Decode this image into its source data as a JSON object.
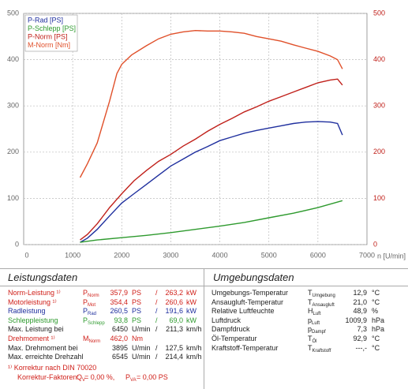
{
  "chart_data": {
    "type": "line",
    "xlabel": "n [U/min]",
    "xlim": [
      0,
      7000
    ],
    "xticks": [
      0,
      1000,
      2000,
      3000,
      4000,
      5000,
      6000,
      7000
    ],
    "ylim": [
      0,
      500
    ],
    "yticks": [
      0,
      100,
      200,
      300,
      400,
      500
    ],
    "y2lim": [
      0,
      500
    ],
    "y2ticks": [
      0,
      100,
      200,
      300,
      400,
      500
    ],
    "grid": true,
    "legend": "top-left",
    "series": [
      {
        "name": "P-Rad [PS]",
        "color": "#1f2f9e",
        "x": [
          1150,
          1300,
          1500,
          1750,
          2000,
          2250,
          2500,
          2750,
          3000,
          3250,
          3500,
          3750,
          4000,
          4250,
          4500,
          4750,
          5000,
          5250,
          5500,
          5750,
          6000,
          6250,
          6400,
          6500
        ],
        "values": [
          5,
          14,
          33,
          62,
          90,
          110,
          130,
          150,
          170,
          185,
          200,
          212,
          225,
          233,
          241,
          247,
          252,
          257,
          262,
          265,
          266,
          265,
          262,
          237
        ]
      },
      {
        "name": "P-Schlepp [PS]",
        "color": "#2e9a2e",
        "x": [
          1150,
          1500,
          2000,
          2500,
          3000,
          3500,
          4000,
          4500,
          5000,
          5500,
          6000,
          6500
        ],
        "values": [
          5,
          10,
          15,
          20,
          26,
          33,
          40,
          48,
          58,
          68,
          80,
          95
        ]
      },
      {
        "name": "P-Norm [PS]",
        "color": "#c0201a",
        "x": [
          1150,
          1300,
          1500,
          1750,
          2000,
          2250,
          2500,
          2750,
          3000,
          3250,
          3500,
          3750,
          4000,
          4250,
          4500,
          4750,
          5000,
          5250,
          5500,
          5750,
          6000,
          6250,
          6400,
          6500
        ],
        "values": [
          10,
          22,
          45,
          80,
          110,
          138,
          160,
          180,
          195,
          213,
          228,
          245,
          260,
          273,
          287,
          298,
          310,
          320,
          330,
          340,
          350,
          356,
          358,
          345
        ]
      },
      {
        "name": "M-Norm [Nm]",
        "color": "#e0502a",
        "axis": "y2",
        "x": [
          1150,
          1300,
          1500,
          1750,
          1900,
          2000,
          2200,
          2500,
          2750,
          3000,
          3250,
          3500,
          3750,
          3895,
          4000,
          4250,
          4500,
          4750,
          5000,
          5250,
          5500,
          5750,
          6000,
          6250,
          6400,
          6500
        ],
        "values": [
          145,
          175,
          220,
          310,
          370,
          390,
          410,
          430,
          445,
          455,
          460,
          463,
          462,
          462,
          462,
          460,
          457,
          450,
          445,
          440,
          432,
          425,
          418,
          408,
          400,
          380
        ]
      }
    ]
  },
  "left": {
    "title": "Leistungsdaten",
    "power_rows": [
      {
        "label": "Norm-Leistung ¹⁾",
        "color": "#d0201a",
        "symbol": {
          "main": "P",
          "sub": "Norm"
        },
        "v1": "357,9",
        "u1": "PS",
        "sep": "/",
        "v2": "263,2",
        "u2": "kW"
      },
      {
        "label": "Motorleistung ¹⁾",
        "color": "#d0201a",
        "symbol": {
          "main": "P",
          "sub": "Mot"
        },
        "v1": "354,4",
        "u1": "PS",
        "sep": "/",
        "v2": "260,6",
        "u2": "kW"
      },
      {
        "label": "Radleistung",
        "color": "#1f2f9e",
        "symbol": {
          "main": "P",
          "sub": "Rad"
        },
        "v1": "260,5",
        "u1": "PS",
        "sep": "/",
        "v2": "191,6",
        "u2": "kW"
      },
      {
        "label": "Schleppleistung",
        "color": "#2e9a2e",
        "symbol": {
          "main": "P",
          "sub": "Schlepp"
        },
        "v1": "93,8",
        "u1": "PS",
        "sep": "/",
        "v2": "69,0",
        "u2": "kW"
      },
      {
        "label": "Max. Leistung bei",
        "color": "#222222",
        "v1": "6450",
        "u1": "U/min",
        "sep": "/",
        "v2": "211,3",
        "u2": "km/h"
      }
    ],
    "torque_rows": [
      {
        "label": "Drehmoment ¹⁾",
        "color": "#d0201a",
        "symbol": {
          "main": "M",
          "sub": "Norm"
        },
        "v1": "462,0",
        "u1": "Nm"
      },
      {
        "label": "Max. Drehmoment bei",
        "color": "#222222",
        "v1": "3895",
        "u1": "U/min",
        "sep": "/",
        "v2": "127,5",
        "u2": "km/h"
      },
      {
        "label": "Max. erreichte Drehzahl",
        "color": "#222222",
        "v1": "6545",
        "u1": "U/min",
        "sep": "/",
        "v2": "214,4",
        "u2": "km/h"
      }
    ],
    "note": "¹⁾ Korrektur nach DIN 70020",
    "correction": {
      "label": "Korrektur-Faktoren:",
      "factors": [
        {
          "main": "Q",
          "sub": "V",
          "value": "=  0,00 %,"
        },
        {
          "main": "P",
          "sub": "VA",
          "value": "=  0,00 PS"
        }
      ]
    }
  },
  "right": {
    "title": "Umgebungsdaten",
    "rows": [
      {
        "label": "Umgebungs-Temperatur",
        "symbol": {
          "main": "T",
          "sub": "Umgebung"
        },
        "value": "12,9",
        "unit": "°C"
      },
      {
        "label": "Ansaugluft-Temperatur",
        "symbol": {
          "main": "T",
          "sub": "Ansaugluft"
        },
        "value": "21,0",
        "unit": "°C"
      },
      {
        "label": "Relative Luftfeuchte",
        "symbol": {
          "main": "H",
          "sub": "Luft"
        },
        "value": "48,9",
        "unit": "%"
      },
      {
        "label": "Luftdruck",
        "symbol": {
          "main": "p",
          "sub": "Luft"
        },
        "value": "1009,9",
        "unit": "hPa"
      },
      {
        "label": "Dampfdruck",
        "symbol": {
          "main": "p",
          "sub": "Dampf"
        },
        "value": "7,3",
        "unit": "hPa"
      }
    ],
    "oil_rows": [
      {
        "label": "Öl-Temperatur",
        "symbol": {
          "main": "T",
          "sub": "Öl"
        },
        "value": "92,9",
        "unit": "°C"
      },
      {
        "label": "Kraftstoff-Temperatur",
        "symbol": {
          "main": "T",
          "sub": "Kraftstoff"
        },
        "value": "---,-",
        "unit": "°C"
      }
    ]
  }
}
